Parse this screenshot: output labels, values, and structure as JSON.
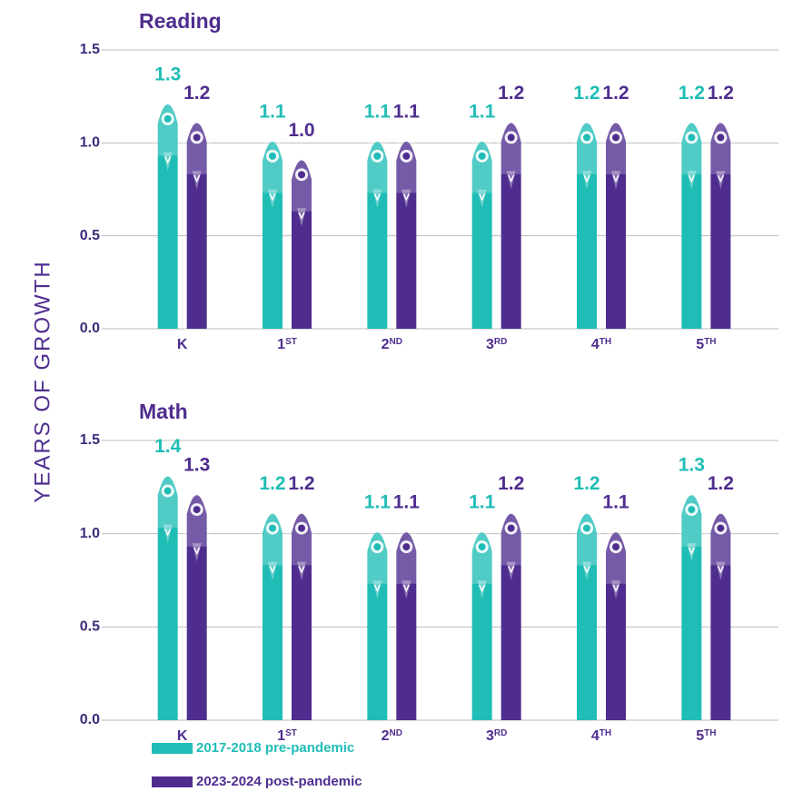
{
  "y_label": "YEARS OF GROWTH",
  "chart_data": [
    {
      "type": "bar",
      "title": "Reading",
      "categories": [
        "K",
        "1ST",
        "2ND",
        "3RD",
        "4TH",
        "5TH"
      ],
      "series": [
        {
          "name": "2017-2018 pre-pandemic",
          "color": "#1fbdb6",
          "values": [
            1.3,
            1.1,
            1.1,
            1.1,
            1.2,
            1.2
          ],
          "value_labels": [
            "1.3",
            "1.1",
            "1.1",
            "1.1",
            "1.2",
            "1.2"
          ]
        },
        {
          "name": "2023-2024 post-pandemic",
          "color": "#4f2d8f",
          "values": [
            1.2,
            1.0,
            1.1,
            1.2,
            1.2,
            1.2
          ],
          "value_labels": [
            "1.2",
            "1.0",
            "1.1",
            "1.2",
            "1.2",
            "1.2"
          ]
        }
      ],
      "ylim": [
        0,
        1.5
      ],
      "yticks": [
        {
          "value": 0,
          "label": "0.0"
        },
        {
          "value": 0.5,
          "label": "0.5"
        },
        {
          "value": 1,
          "label": "1.0"
        },
        {
          "value": 1.5,
          "label": "1.5"
        }
      ],
      "grid": true
    },
    {
      "type": "bar",
      "title": "Math",
      "categories": [
        "K",
        "1ST",
        "2ND",
        "3RD",
        "4TH",
        "5TH"
      ],
      "series": [
        {
          "name": "2017-2018 pre-pandemic",
          "color": "#1fbdb6",
          "values": [
            1.4,
            1.2,
            1.1,
            1.1,
            1.2,
            1.3
          ],
          "value_labels": [
            "1.4",
            "1.2",
            "1.1",
            "1.1",
            "1.2",
            "1.3"
          ]
        },
        {
          "name": "2023-2024 post-pandemic",
          "color": "#4f2d8f",
          "values": [
            1.3,
            1.2,
            1.1,
            1.2,
            1.1,
            1.2
          ],
          "value_labels": [
            "1.3",
            "1.2",
            "1.1",
            "1.2",
            "1.1",
            "1.2"
          ]
        }
      ],
      "ylim": [
        0,
        1.5
      ],
      "yticks": [
        {
          "value": 0,
          "label": "0.0"
        },
        {
          "value": 0.5,
          "label": "0.5"
        },
        {
          "value": 1,
          "label": "1.0"
        },
        {
          "value": 1.5,
          "label": "1.5"
        }
      ],
      "grid": true
    }
  ]
}
